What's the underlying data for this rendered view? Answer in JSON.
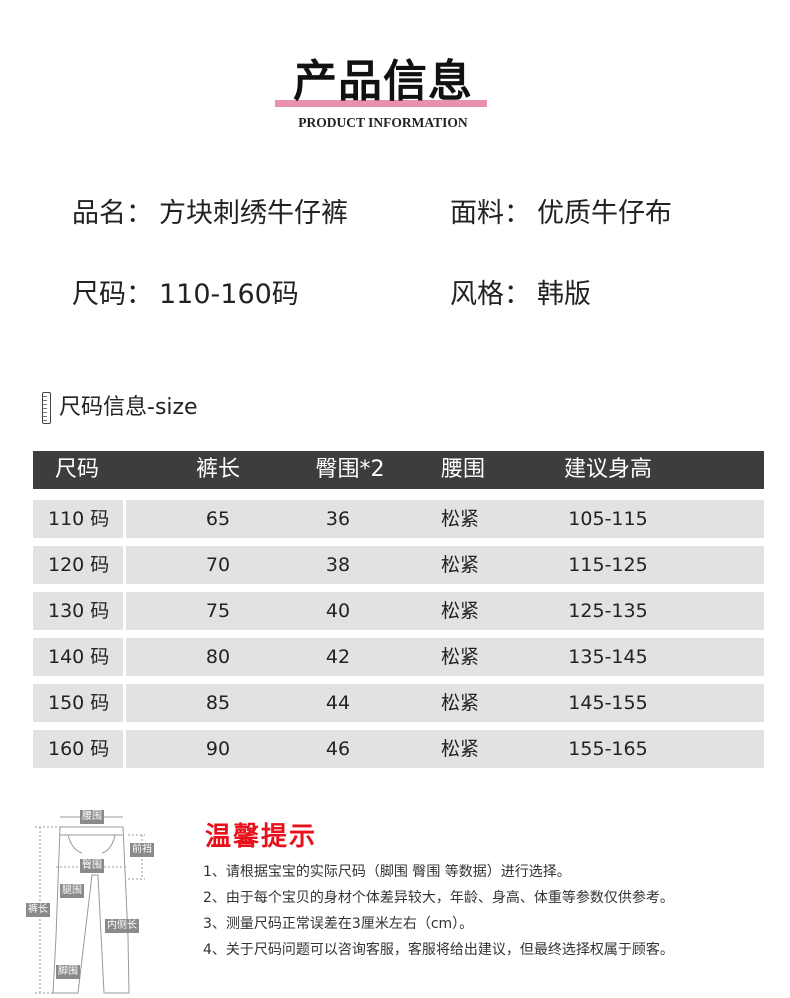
{
  "header": {
    "title": "产品信息",
    "subtitle": "PRODUCT INFORMATION",
    "accent": "#e98fb2"
  },
  "info": {
    "name_label": "品名：",
    "name_value": "方块刺绣牛仔裤",
    "fabric_label": "面料：",
    "fabric_value": "优质牛仔布",
    "size_label": "尺码：",
    "size_value": "110-160码",
    "style_label": "风格：",
    "style_value": "韩版"
  },
  "size_section": {
    "title": "尺码信息-size",
    "icon": "ruler-icon"
  },
  "table": {
    "headers": [
      "尺码",
      "裤长",
      "臀围*2",
      "腰围",
      "建议身高"
    ],
    "rows": [
      [
        "110 码",
        "65",
        "36",
        "松紧",
        "105-115"
      ],
      [
        "120 码",
        "70",
        "38",
        "松紧",
        "115-125"
      ],
      [
        "130 码",
        "75",
        "40",
        "松紧",
        "125-135"
      ],
      [
        "140 码",
        "80",
        "42",
        "松紧",
        "135-145"
      ],
      [
        "150 码",
        "85",
        "44",
        "松紧",
        "145-155"
      ],
      [
        "160 码",
        "90",
        "46",
        "松紧",
        "155-165"
      ]
    ]
  },
  "diagram": {
    "labels": [
      "腰围",
      "前裆",
      "臀围",
      "腿围",
      "裤长",
      "内侧长",
      "脚围"
    ]
  },
  "tips": {
    "title": "温馨提示",
    "color": "#e8101a",
    "items": [
      "1、请根据宝宝的实际尺码（脚围 臀围 等数据）进行选择。",
      "2、由于每个宝贝的身材个体差异较大，年龄、身高、体重等参数仅供参考。",
      "3、测量尺码正常误差在3厘米左右（cm）。",
      "4、关于尺码问题可以咨询客服，客服将给出建议，但最终选择权属于顾客。"
    ]
  }
}
